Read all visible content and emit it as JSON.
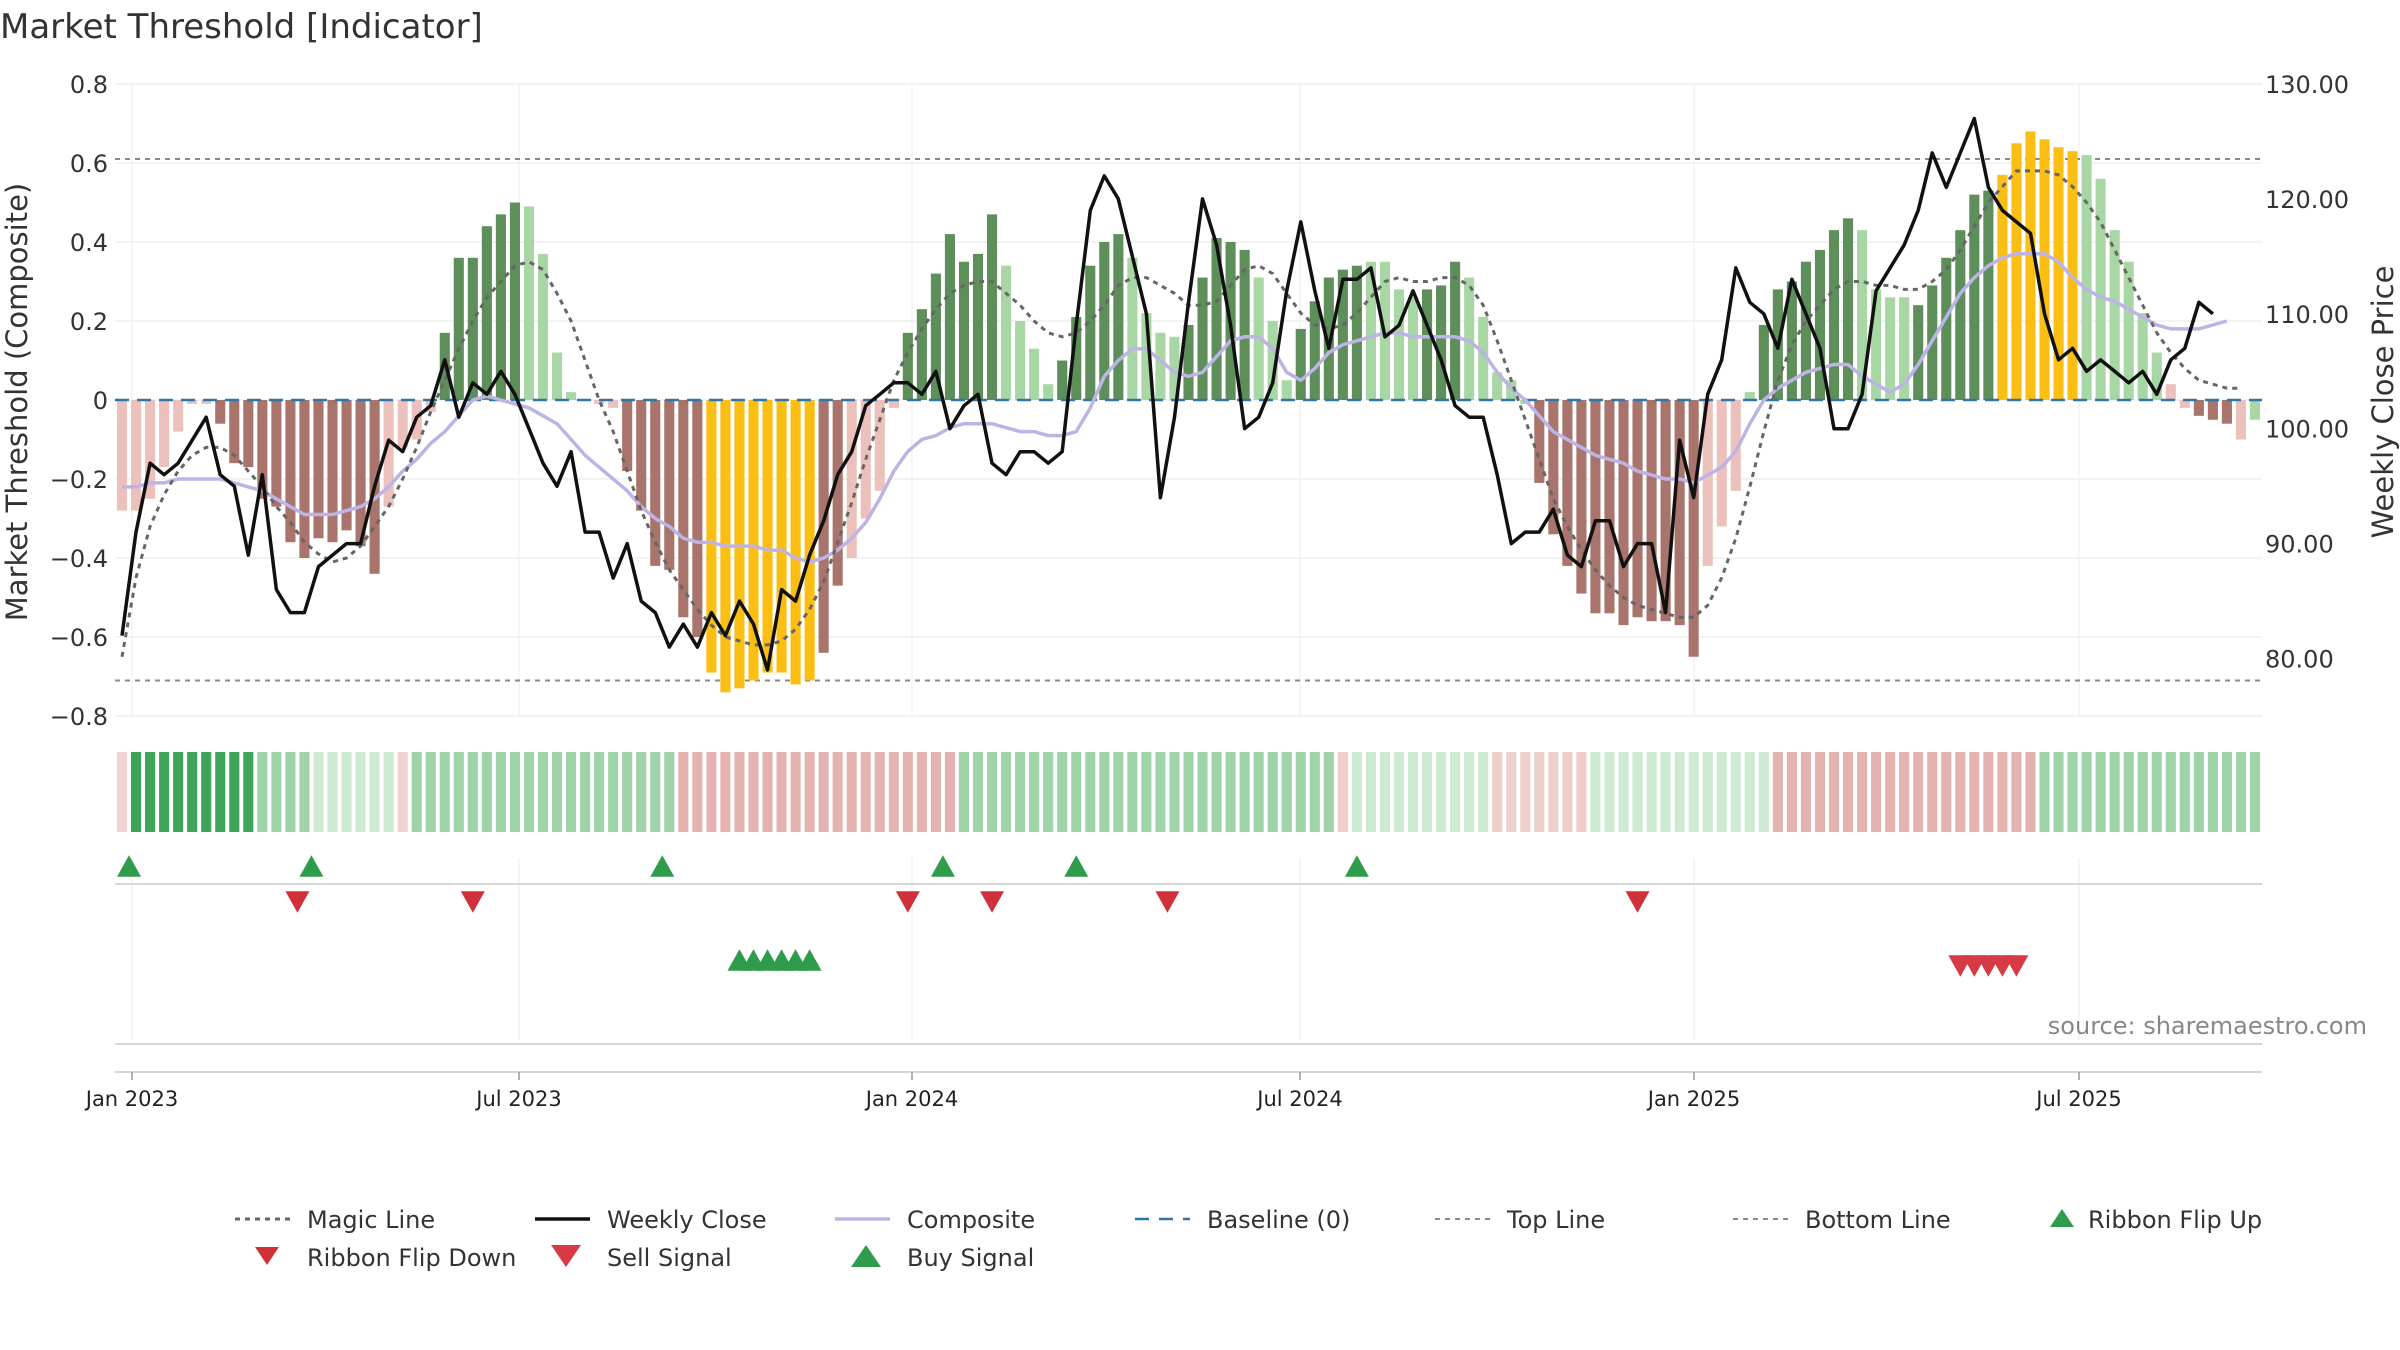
{
  "chart_data": {
    "type": "bar",
    "title": "Market Threshold [Indicator]",
    "source": "source: sharemaestro.com",
    "ylabel_left": "Market Threshold (Composite)",
    "ylabel_right": "Weekly Close Price",
    "ylim_left": [
      -0.8,
      0.8
    ],
    "ylim_right": [
      75,
      130
    ],
    "left_ticks": [
      "0.8",
      "0.6",
      "0.4",
      "0.2",
      "0",
      "−0.2",
      "−0.4",
      "−0.6",
      "−0.8"
    ],
    "right_ticks": [
      "130.00",
      "120.00",
      "110.00",
      "100.00",
      "90.00",
      "80.00"
    ],
    "x_ticks": [
      "Jan 2023",
      "Jul 2023",
      "Jan 2024",
      "Jul 2024",
      "Jan 2025",
      "Jul 2025"
    ],
    "top_line": 0.61,
    "bottom_line": -0.71,
    "grid": true,
    "legend_position": "bottom",
    "colors": {
      "bull_strong": "#5e8f5b",
      "bull_weak": "#a9d6a5",
      "bear_strong": "#a8746c",
      "bear_weak": "#ecc1bb",
      "extreme": "#fbbf14",
      "close": "#111111",
      "composite": "#bdb4e6",
      "magic": "#666666",
      "baseline": "#2e75a8",
      "buy": "#2e9c4a",
      "sell": "#d73a45"
    },
    "composite_bars": [
      -0.28,
      -0.28,
      -0.25,
      -0.17,
      -0.08,
      -0.01,
      -0.01,
      -0.06,
      -0.16,
      -0.17,
      -0.25,
      -0.27,
      -0.36,
      -0.4,
      -0.35,
      -0.36,
      -0.33,
      -0.37,
      -0.44,
      -0.27,
      -0.12,
      -0.1,
      -0.03,
      0.17,
      0.36,
      0.36,
      0.44,
      0.47,
      0.5,
      0.49,
      0.37,
      0.12,
      0.02,
      0.0,
      -0.01,
      -0.02,
      -0.18,
      -0.28,
      -0.42,
      -0.43,
      -0.55,
      -0.6,
      -0.69,
      -0.74,
      -0.73,
      -0.71,
      -0.69,
      -0.69,
      -0.72,
      -0.71,
      -0.64,
      -0.47,
      -0.4,
      -0.3,
      -0.23,
      -0.02,
      0.17,
      0.23,
      0.32,
      0.42,
      0.35,
      0.37,
      0.47,
      0.34,
      0.2,
      0.13,
      0.04,
      0.1,
      0.21,
      0.34,
      0.4,
      0.42,
      0.36,
      0.22,
      0.17,
      0.16,
      0.19,
      0.31,
      0.41,
      0.4,
      0.38,
      0.31,
      0.2,
      0.05,
      0.18,
      0.25,
      0.31,
      0.33,
      0.34,
      0.35,
      0.35,
      0.28,
      0.26,
      0.28,
      0.29,
      0.35,
      0.31,
      0.21,
      0.07,
      0.05,
      -0.01,
      -0.21,
      -0.34,
      -0.42,
      -0.49,
      -0.54,
      -0.54,
      -0.57,
      -0.55,
      -0.56,
      -0.56,
      -0.57,
      -0.65,
      -0.42,
      -0.32,
      -0.23,
      0.02,
      0.19,
      0.28,
      0.3,
      0.35,
      0.38,
      0.43,
      0.46,
      0.43,
      0.28,
      0.26,
      0.26,
      0.24,
      0.29,
      0.36,
      0.43,
      0.52,
      0.53,
      0.57,
      0.65,
      0.68,
      0.66,
      0.64,
      0.63,
      0.62,
      0.56,
      0.43,
      0.35,
      0.22,
      0.12,
      0.04,
      -0.02,
      -0.04,
      -0.05,
      -0.06,
      -0.1,
      -0.05
    ],
    "bar_colors": [
      "bw",
      "bw",
      "bw",
      "bw",
      "bw",
      "bw",
      "bw",
      "bs",
      "bs",
      "bs",
      "bs",
      "bs",
      "bs",
      "bs",
      "bs",
      "bs",
      "bs",
      "bs",
      "bs",
      "bw",
      "bw",
      "bw",
      "bw",
      "gs",
      "gs",
      "gs",
      "gs",
      "gs",
      "gs",
      "gw",
      "gw",
      "gw",
      "gw",
      "bw",
      "bw",
      "bw",
      "bs",
      "bs",
      "bs",
      "bs",
      "bs",
      "bs",
      "y",
      "y",
      "y",
      "y",
      "y",
      "y",
      "y",
      "y",
      "bs",
      "bs",
      "bw",
      "bw",
      "bw",
      "bw",
      "gs",
      "gs",
      "gs",
      "gs",
      "gs",
      "gs",
      "gs",
      "gw",
      "gw",
      "gw",
      "gw",
      "gs",
      "gs",
      "gs",
      "gs",
      "gs",
      "gw",
      "gw",
      "gw",
      "gw",
      "gs",
      "gs",
      "gs",
      "gs",
      "gs",
      "gw",
      "gw",
      "gw",
      "gs",
      "gs",
      "gs",
      "gs",
      "gs",
      "gw",
      "gw",
      "gw",
      "gw",
      "gs",
      "gs",
      "gs",
      "gw",
      "gw",
      "gw",
      "gw",
      "gw",
      "bs",
      "bs",
      "bs",
      "bs",
      "bs",
      "bs",
      "bs",
      "bs",
      "bs",
      "bs",
      "bs",
      "bs",
      "bw",
      "bw",
      "bw",
      "gw",
      "gs",
      "gs",
      "gs",
      "gs",
      "gs",
      "gs",
      "gs",
      "gw",
      "gw",
      "gw",
      "gw",
      "gs",
      "gs",
      "gs",
      "gs",
      "gs",
      "gs",
      "y",
      "y",
      "y",
      "y",
      "y",
      "y",
      "gw",
      "gw",
      "gw",
      "gw",
      "gw",
      "gw",
      "bw",
      "bw",
      "bs",
      "bs",
      "bs",
      "bw"
    ],
    "magic_line": [
      -0.65,
      -0.45,
      -0.32,
      -0.24,
      -0.18,
      -0.14,
      -0.12,
      -0.12,
      -0.14,
      -0.18,
      -0.22,
      -0.27,
      -0.31,
      -0.36,
      -0.39,
      -0.41,
      -0.4,
      -0.37,
      -0.32,
      -0.27,
      -0.2,
      -0.12,
      -0.03,
      0.05,
      0.13,
      0.2,
      0.26,
      0.3,
      0.34,
      0.35,
      0.33,
      0.27,
      0.2,
      0.1,
      0.0,
      -0.08,
      -0.18,
      -0.28,
      -0.36,
      -0.43,
      -0.48,
      -0.53,
      -0.57,
      -0.6,
      -0.61,
      -0.62,
      -0.62,
      -0.61,
      -0.58,
      -0.53,
      -0.46,
      -0.36,
      -0.26,
      -0.15,
      -0.05,
      0.05,
      0.12,
      0.18,
      0.23,
      0.27,
      0.29,
      0.3,
      0.3,
      0.27,
      0.24,
      0.2,
      0.17,
      0.16,
      0.17,
      0.2,
      0.24,
      0.29,
      0.31,
      0.31,
      0.29,
      0.27,
      0.24,
      0.24,
      0.25,
      0.29,
      0.33,
      0.34,
      0.32,
      0.27,
      0.22,
      0.19,
      0.18,
      0.19,
      0.22,
      0.26,
      0.3,
      0.31,
      0.3,
      0.3,
      0.31,
      0.31,
      0.29,
      0.24,
      0.15,
      0.05,
      -0.05,
      -0.15,
      -0.25,
      -0.32,
      -0.38,
      -0.43,
      -0.47,
      -0.5,
      -0.52,
      -0.53,
      -0.54,
      -0.55,
      -0.55,
      -0.52,
      -0.45,
      -0.35,
      -0.22,
      -0.08,
      0.05,
      0.14,
      0.2,
      0.24,
      0.28,
      0.3,
      0.3,
      0.29,
      0.29,
      0.28,
      0.28,
      0.3,
      0.33,
      0.38,
      0.44,
      0.5,
      0.54,
      0.58,
      0.58,
      0.58,
      0.57,
      0.54,
      0.5,
      0.45,
      0.38,
      0.31,
      0.24,
      0.17,
      0.12,
      0.08,
      0.05,
      0.04,
      0.03,
      0.03
    ],
    "composite_line": [
      -0.22,
      -0.22,
      -0.21,
      -0.21,
      -0.2,
      -0.2,
      -0.2,
      -0.2,
      -0.21,
      -0.22,
      -0.23,
      -0.25,
      -0.27,
      -0.29,
      -0.29,
      -0.29,
      -0.28,
      -0.27,
      -0.25,
      -0.22,
      -0.18,
      -0.15,
      -0.11,
      -0.08,
      -0.04,
      0.0,
      0.01,
      0.0,
      -0.01,
      -0.02,
      -0.04,
      -0.06,
      -0.1,
      -0.14,
      -0.17,
      -0.2,
      -0.23,
      -0.27,
      -0.3,
      -0.32,
      -0.35,
      -0.36,
      -0.36,
      -0.37,
      -0.37,
      -0.37,
      -0.38,
      -0.38,
      -0.4,
      -0.41,
      -0.4,
      -0.38,
      -0.35,
      -0.31,
      -0.25,
      -0.18,
      -0.13,
      -0.1,
      -0.09,
      -0.07,
      -0.06,
      -0.06,
      -0.06,
      -0.07,
      -0.08,
      -0.08,
      -0.09,
      -0.09,
      -0.08,
      -0.02,
      0.06,
      0.1,
      0.13,
      0.13,
      0.1,
      0.07,
      0.06,
      0.07,
      0.11,
      0.15,
      0.16,
      0.16,
      0.13,
      0.07,
      0.05,
      0.08,
      0.12,
      0.14,
      0.15,
      0.16,
      0.17,
      0.17,
      0.16,
      0.16,
      0.16,
      0.16,
      0.15,
      0.12,
      0.07,
      0.03,
      0.0,
      -0.04,
      -0.08,
      -0.1,
      -0.12,
      -0.14,
      -0.15,
      -0.16,
      -0.18,
      -0.19,
      -0.2,
      -0.2,
      -0.21,
      -0.19,
      -0.17,
      -0.13,
      -0.06,
      0.0,
      0.03,
      0.05,
      0.07,
      0.08,
      0.09,
      0.09,
      0.06,
      0.04,
      0.02,
      0.04,
      0.09,
      0.15,
      0.21,
      0.27,
      0.31,
      0.34,
      0.36,
      0.37,
      0.37,
      0.37,
      0.35,
      0.31,
      0.28,
      0.26,
      0.25,
      0.23,
      0.21,
      0.19,
      0.18,
      0.18,
      0.18,
      0.19,
      0.2
    ],
    "weekly_close": [
      82,
      91,
      97,
      96,
      97,
      99,
      101,
      96,
      95,
      89,
      96,
      86,
      84,
      84,
      88,
      89,
      90,
      90,
      95,
      99,
      98,
      101,
      102,
      106,
      101,
      104,
      103,
      105,
      103,
      100,
      97,
      95,
      98,
      91,
      91,
      87,
      90,
      85,
      84,
      81,
      83,
      81,
      84,
      82,
      85,
      83,
      79,
      86,
      85,
      89,
      92,
      96,
      98,
      102,
      103,
      104,
      104,
      103,
      105,
      100,
      102,
      103,
      97,
      96,
      98,
      98,
      97,
      98,
      109,
      119,
      122,
      120,
      115,
      110,
      94,
      101,
      111,
      120,
      116,
      109,
      100,
      101,
      104,
      112,
      118,
      112,
      107,
      113,
      113,
      114,
      108,
      109,
      112,
      109,
      106,
      102,
      101,
      101,
      96,
      90,
      91,
      91,
      93,
      89,
      88,
      92,
      92,
      88,
      90,
      90,
      84,
      99,
      94,
      103,
      106,
      114,
      111,
      110,
      107,
      113,
      110,
      107,
      100,
      100,
      103,
      112,
      114,
      116,
      119,
      124,
      121,
      124,
      127,
      121,
      119,
      118,
      117,
      110,
      106,
      107,
      105,
      106,
      105,
      104,
      105,
      103,
      106,
      107,
      111,
      110
    ],
    "ribbon": [
      "bw",
      "gs",
      "gs",
      "gs",
      "gs",
      "gs",
      "gs",
      "gs",
      "gs",
      "gs",
      "gm",
      "gm",
      "gm",
      "gm",
      "gl",
      "gl",
      "gl",
      "gl",
      "gl",
      "gl",
      "bw",
      "gm",
      "gm",
      "gm",
      "gm",
      "gm",
      "gm",
      "gm",
      "gm",
      "gm",
      "gm",
      "gm",
      "gm",
      "gm",
      "gm",
      "gm",
      "gm",
      "gm",
      "gm",
      "gm",
      "bm",
      "bm",
      "bm",
      "bm",
      "bm",
      "bm",
      "bm",
      "bm",
      "bm",
      "bm",
      "bm",
      "bm",
      "bm",
      "bm",
      "bm",
      "bm",
      "bm",
      "bm",
      "bm",
      "bm",
      "gm",
      "gm",
      "gm",
      "gm",
      "gm",
      "gm",
      "gm",
      "gm",
      "gm",
      "gm",
      "gm",
      "gm",
      "gm",
      "gm",
      "gm",
      "gm",
      "gm",
      "gm",
      "gm",
      "gm",
      "gm",
      "gm",
      "gm",
      "gm",
      "gm",
      "gm",
      "gm",
      "bl",
      "gl",
      "gl",
      "gl",
      "gl",
      "gl",
      "gl",
      "gl",
      "gl",
      "gl",
      "gl",
      "bl",
      "bl",
      "bl",
      "bl",
      "bl",
      "bl",
      "bl",
      "gl",
      "gl",
      "gl",
      "gl",
      "gl",
      "gl",
      "gl",
      "gl",
      "gl",
      "gl",
      "gl",
      "gl",
      "gl",
      "bm",
      "bm",
      "bm",
      "bm",
      "bm",
      "bm",
      "bm",
      "bm",
      "bm",
      "bm",
      "bm",
      "bm",
      "bm",
      "bm",
      "bm",
      "bm",
      "bm",
      "bm",
      "bm",
      "gm",
      "gm",
      "gm",
      "gm",
      "gm",
      "gm",
      "gm",
      "gm",
      "gm",
      "gm",
      "gm",
      "gm",
      "gm",
      "gm",
      "gm",
      "gm"
    ],
    "ribbon_flip_up": [
      0.5,
      13.5,
      38.5,
      58.5,
      68.0,
      88.0
    ],
    "ribbon_flip_down": [
      12.5,
      25.0,
      56.0,
      62.0,
      74.5,
      108.0
    ],
    "buy_signals": [
      44.0,
      45.0,
      46.0,
      47.0,
      48.0,
      49.0
    ],
    "sell_signals": [
      131.0,
      132.0,
      133.0,
      134.0,
      135.0
    ],
    "legend": [
      "Magic Line",
      "Weekly Close",
      "Composite",
      "Baseline (0)",
      "Top Line",
      "Bottom Line",
      "Ribbon Flip Up",
      "Ribbon Flip Down",
      "Sell Signal",
      "Buy Signal"
    ]
  }
}
